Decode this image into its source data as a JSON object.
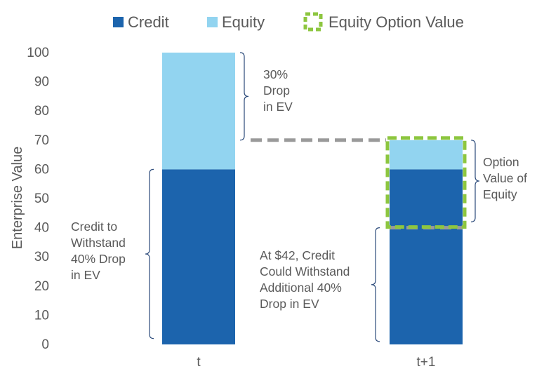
{
  "chart_data": {
    "type": "bar",
    "stacked": true,
    "categories": [
      "t",
      "t+1"
    ],
    "series": [
      {
        "name": "Credit",
        "values": [
          60,
          60
        ],
        "color": "#1c64ad"
      },
      {
        "name": "Equity",
        "values": [
          40,
          10
        ],
        "color": "#92d4f0"
      }
    ],
    "legend_items": [
      {
        "name": "Credit",
        "color": "#1c64ad",
        "style": "filled-square"
      },
      {
        "name": "Equity",
        "color": "#92d4f0",
        "style": "filled-square"
      },
      {
        "name": "Equity Option Value",
        "color": "#8dc63f",
        "style": "dashed-square-outline"
      }
    ],
    "legend_position": "top",
    "option_value_box": {
      "category": "t+1",
      "y_range": [
        40,
        70
      ],
      "color": "#8dc63f"
    },
    "dashed_levels": [
      {
        "y": 70,
        "from": "t",
        "to": "t+1",
        "color": "#9a9a9a"
      },
      {
        "y": 40,
        "category": "t+1",
        "color": "#9a9a9a"
      }
    ],
    "xlabel": "",
    "ylabel": "Enterprise Value",
    "ylim": [
      0,
      100
    ],
    "yticks": [
      0,
      10,
      20,
      30,
      40,
      50,
      60,
      70,
      80,
      90,
      100
    ],
    "grid": false,
    "annotations": [
      {
        "id": "drop30",
        "lines": [
          "30%",
          "Drop",
          "in EV"
        ],
        "bracket_category": "t",
        "y_range": [
          70,
          100
        ],
        "side": "right"
      },
      {
        "id": "credit40",
        "lines": [
          "Credit to",
          "Withstand",
          "40% Drop",
          "in EV"
        ],
        "bracket_category": "t",
        "y_range": [
          2,
          60
        ],
        "side": "left"
      },
      {
        "id": "option",
        "lines": [
          "Option",
          "Value of",
          "Equity"
        ],
        "bracket_category": "t+1",
        "y_range": [
          42,
          70
        ],
        "side": "right"
      },
      {
        "id": "credit42",
        "lines": [
          "At $42, Credit",
          "Could Withstand",
          "Additional 40%",
          "Drop in EV"
        ],
        "bracket_category": "t+1",
        "y_range": [
          1,
          40
        ],
        "side": "left"
      }
    ]
  }
}
